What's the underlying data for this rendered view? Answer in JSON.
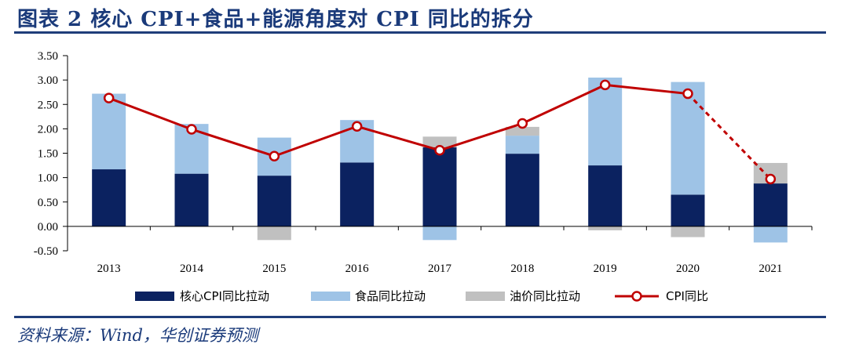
{
  "title": "图表 2    核心 CPI+食品+能源角度对 CPI 同比的拆分",
  "source": "资料来源：Wind，华创证券预测",
  "colors": {
    "core": "#0b2260",
    "food": "#9ec3e6",
    "oil": "#c0c0c0",
    "cpi": "#c00000",
    "rule": "#1f3d7a"
  },
  "chart_data": {
    "type": "bar",
    "stacked": true,
    "categories": [
      "2013",
      "2014",
      "2015",
      "2016",
      "2017",
      "2018",
      "2019",
      "2020",
      "2021"
    ],
    "series": [
      {
        "name": "核心CPI同比拉动",
        "values": [
          1.17,
          1.08,
          1.04,
          1.31,
          1.62,
          1.49,
          1.25,
          0.65,
          0.88
        ]
      },
      {
        "name": "食品同比拉动",
        "values": [
          1.55,
          1.02,
          0.78,
          0.87,
          -0.28,
          0.37,
          1.8,
          2.31,
          -0.33
        ]
      },
      {
        "name": "油价同比拉动",
        "values": [
          0.0,
          0.0,
          -0.28,
          0.0,
          0.22,
          0.18,
          -0.08,
          -0.22,
          0.42
        ]
      }
    ],
    "line": {
      "name": "CPI同比",
      "values": [
        2.63,
        1.99,
        1.44,
        2.05,
        1.56,
        2.11,
        2.9,
        2.72,
        0.97
      ],
      "dashed_from_index": 7
    },
    "ylim": [
      -0.5,
      3.5
    ],
    "yticks": [
      "3.50",
      "3.00",
      "2.50",
      "2.00",
      "1.50",
      "1.00",
      "0.50",
      "0.00",
      "-0.50"
    ],
    "legend_position": "bottom"
  }
}
